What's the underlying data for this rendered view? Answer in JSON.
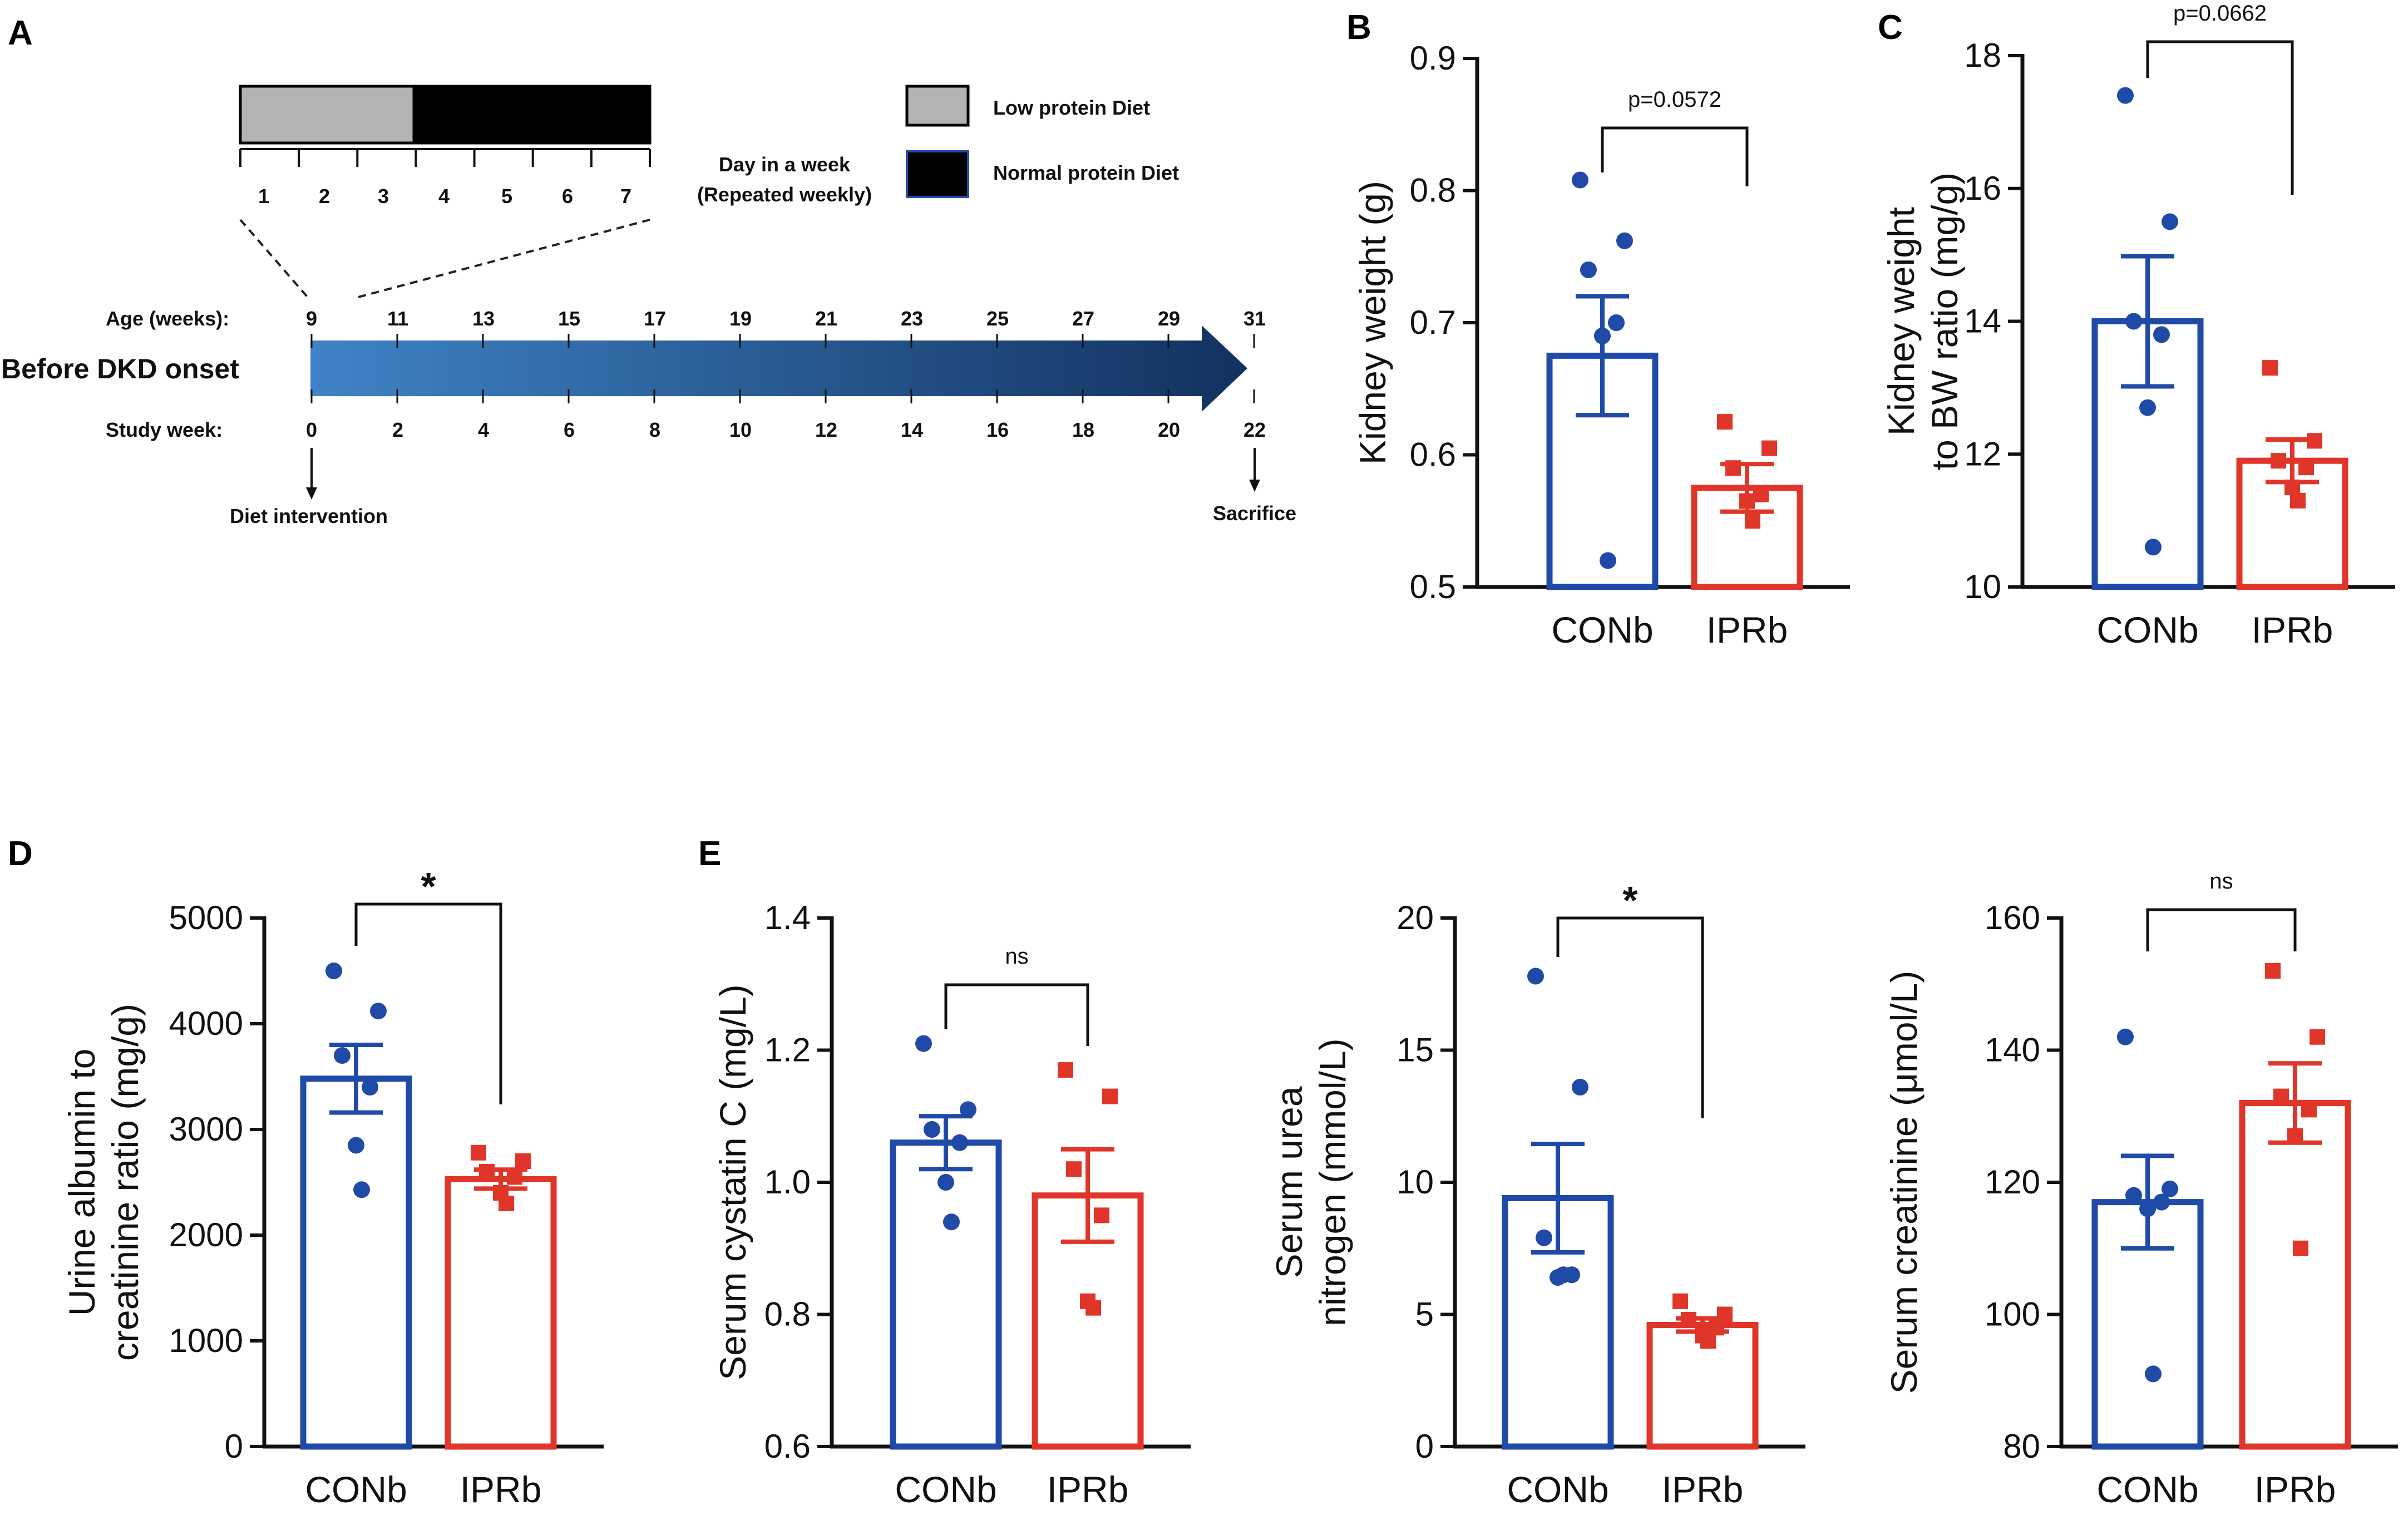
{
  "panels": {
    "A": "A",
    "B": "B",
    "C": "C",
    "D": "D",
    "E": "E"
  },
  "colors": {
    "con": "#1f4aa8",
    "ipr": "#e0362a",
    "low_diet": "#b3b3b3",
    "normal_diet": "#000000",
    "arrow_start": "#3f83c6",
    "arrow_end": "#12315f"
  },
  "timeline": {
    "days": [
      "1",
      "2",
      "3",
      "4",
      "5",
      "6",
      "7"
    ],
    "low_days_count": 3.5,
    "day_label_line1": "Day in a week",
    "day_label_line2": "(Repeated weekly)",
    "legend": [
      {
        "label": "Low protein Diet",
        "color": "#b3b3b3"
      },
      {
        "label": "Normal protein Diet",
        "color": "#000000"
      }
    ],
    "age_label": "Age (weeks):",
    "age_ticks": [
      "9",
      "11",
      "13",
      "15",
      "17",
      "19",
      "21",
      "23",
      "25",
      "27",
      "29",
      "31"
    ],
    "before_label": "Before DKD onset",
    "study_label": "Study week:",
    "study_ticks": [
      "0",
      "2",
      "4",
      "6",
      "8",
      "10",
      "12",
      "14",
      "16",
      "18",
      "20",
      "22"
    ],
    "intervention_label": "Diet intervention",
    "sacrifice_label": "Sacrifice"
  },
  "chart_data": [
    {
      "panel": "B",
      "type": "bar",
      "ylabel": [
        "Kidney weight (g)"
      ],
      "ylim": [
        0.5,
        0.9
      ],
      "yticks": [
        0.5,
        0.6,
        0.7,
        0.8,
        0.9
      ],
      "ytick_labels": [
        "0.5",
        "0.6",
        "0.7",
        "0.8",
        "0.9"
      ],
      "categories": [
        "CONb",
        "IPRb"
      ],
      "series": [
        {
          "name": "CONb",
          "mean": 0.675,
          "sem": 0.045,
          "points": [
            0.808,
            0.762,
            0.74,
            0.7,
            0.69,
            0.52
          ]
        },
        {
          "name": "IPRb",
          "mean": 0.575,
          "sem": 0.018,
          "points": [
            0.625,
            0.605,
            0.59,
            0.57,
            0.565,
            0.55
          ]
        }
      ],
      "significance": "p=0.0572"
    },
    {
      "panel": "C",
      "type": "bar",
      "ylabel": [
        "Kidney weight",
        "to BW ratio (mg/g)"
      ],
      "ylim": [
        10,
        18
      ],
      "yticks": [
        10,
        12,
        14,
        16,
        18
      ],
      "ytick_labels": [
        "10",
        "12",
        "14",
        "16",
        "18"
      ],
      "categories": [
        "CONb",
        "IPRb"
      ],
      "series": [
        {
          "name": "CONb",
          "mean": 14.0,
          "sem": 0.98,
          "points": [
            17.4,
            15.5,
            14.0,
            13.8,
            12.7,
            10.6
          ]
        },
        {
          "name": "IPRb",
          "mean": 11.9,
          "sem": 0.32,
          "points": [
            13.3,
            12.2,
            11.9,
            11.8,
            11.5,
            11.3
          ]
        }
      ],
      "significance": "p=0.0662"
    },
    {
      "panel": "D",
      "type": "bar",
      "ylabel": [
        "Urine albumin to",
        "creatinine ratio (mg/g)"
      ],
      "ylim": [
        0,
        5000
      ],
      "yticks": [
        0,
        1000,
        2000,
        3000,
        4000,
        5000
      ],
      "ytick_labels": [
        "0",
        "1000",
        "2000",
        "3000",
        "4000",
        "5000"
      ],
      "categories": [
        "CONb",
        "IPRb"
      ],
      "series": [
        {
          "name": "CONb",
          "mean": 3480,
          "sem": 320,
          "points": [
            4500,
            4120,
            3700,
            3400,
            2850,
            2430
          ]
        },
        {
          "name": "IPRb",
          "mean": 2530,
          "sem": 90,
          "points": [
            2780,
            2700,
            2600,
            2550,
            2400,
            2300
          ]
        }
      ],
      "significance": "*"
    },
    {
      "panel": "E",
      "type": "bar",
      "ylabel": [
        "Serum cystatin C (mg/L)"
      ],
      "ylim": [
        0.6,
        1.4
      ],
      "yticks": [
        0.6,
        0.8,
        1.0,
        1.2,
        1.4
      ],
      "ytick_labels": [
        "0.6",
        "0.8",
        "1.0",
        "1.2",
        "1.4"
      ],
      "categories": [
        "CONb",
        "IPRb"
      ],
      "series": [
        {
          "name": "CONb",
          "mean": 1.06,
          "sem": 0.04,
          "points": [
            1.21,
            1.11,
            1.08,
            1.06,
            1.0,
            0.94
          ]
        },
        {
          "name": "IPRb",
          "mean": 0.98,
          "sem": 0.07,
          "points": [
            1.17,
            1.13,
            1.02,
            0.95,
            0.82,
            0.81
          ]
        }
      ],
      "significance": "ns"
    },
    {
      "panel": "E2",
      "type": "bar",
      "ylabel": [
        "Serum urea",
        "nitrogen (mmol/L)"
      ],
      "ylim": [
        0,
        20
      ],
      "yticks": [
        0,
        5,
        10,
        15,
        20
      ],
      "ytick_labels": [
        "0",
        "5",
        "10",
        "15",
        "20"
      ],
      "categories": [
        "CONb",
        "IPRb"
      ],
      "series": [
        {
          "name": "CONb",
          "mean": 9.4,
          "sem": 2.05,
          "points": [
            17.8,
            13.6,
            7.9,
            6.5,
            6.4,
            6.5
          ]
        },
        {
          "name": "IPRb",
          "mean": 4.6,
          "sem": 0.25,
          "points": [
            5.5,
            5.0,
            4.8,
            4.5,
            4.2,
            4.0
          ]
        }
      ],
      "significance": "*"
    },
    {
      "panel": "E3",
      "type": "bar",
      "ylabel": [
        "Serum creatinine (μmol/L)"
      ],
      "ylim": [
        80,
        160
      ],
      "yticks": [
        80,
        100,
        120,
        140,
        160
      ],
      "ytick_labels": [
        "80",
        "100",
        "120",
        "140",
        "160"
      ],
      "categories": [
        "CONb",
        "IPRb"
      ],
      "series": [
        {
          "name": "CONb",
          "mean": 117,
          "sem": 7,
          "points": [
            142,
            119,
            118,
            117,
            116,
            91
          ]
        },
        {
          "name": "IPRb",
          "mean": 132,
          "sem": 6,
          "points": [
            152,
            142,
            133,
            131,
            127,
            110
          ]
        }
      ],
      "significance": "ns"
    }
  ]
}
